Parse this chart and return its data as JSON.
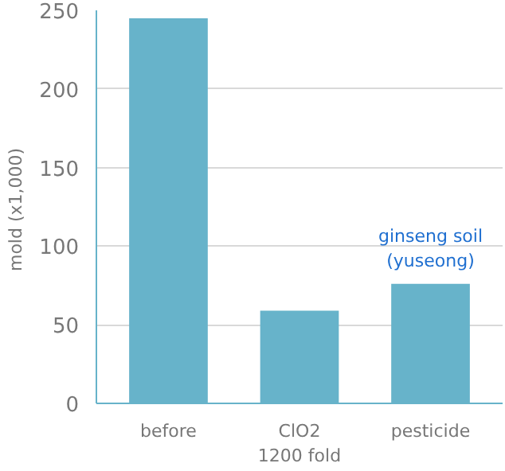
{
  "chart_data": {
    "type": "bar",
    "ylabel": "mold  (x1,000)",
    "categories": [
      "before",
      "ClO2\n1200 fold",
      "pesticide"
    ],
    "values": [
      245,
      59,
      76
    ],
    "color": "#67b3ca",
    "ylim": [
      0,
      250
    ],
    "yticks": [
      0,
      50,
      100,
      150,
      200,
      250
    ],
    "grid": "y",
    "annotations": [
      {
        "text": "ginseng soil\n(yuseong)",
        "x": "pesticide",
        "y": 76
      }
    ]
  }
}
